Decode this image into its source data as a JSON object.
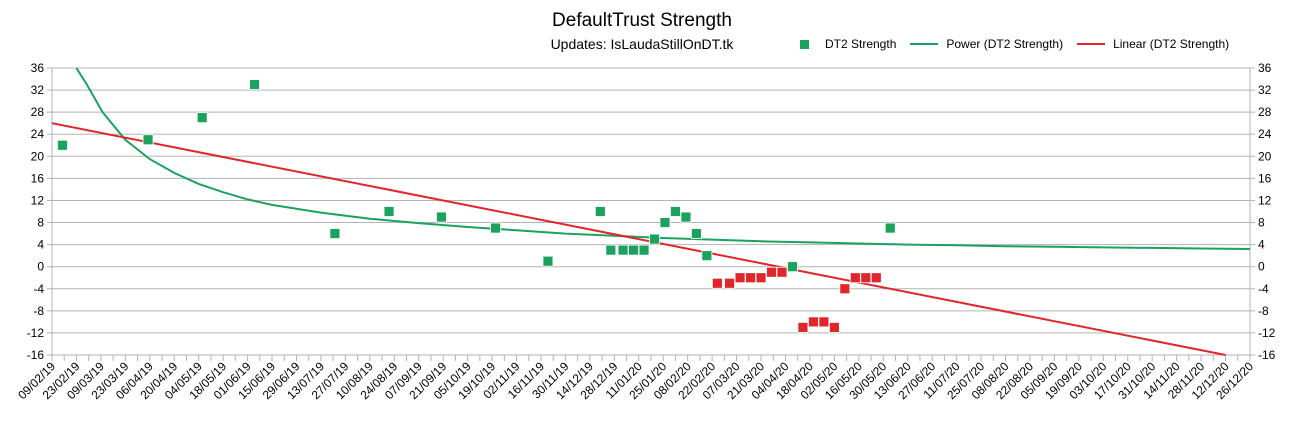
{
  "chart_data": {
    "type": "scatter",
    "title": "DefaultTrust Strength",
    "subtitle": "Updates: IsLaudaStillOnDT.tk",
    "legend_position": "top-right",
    "grid": true,
    "xlim": [
      "2019-02-09",
      "2020-12-26"
    ],
    "ylim": [
      -16,
      36
    ],
    "y_ticks": [
      -16,
      -12,
      -8,
      -4,
      0,
      4,
      8,
      12,
      16,
      20,
      24,
      28,
      32,
      36
    ],
    "x_tick_labels": [
      "09/02/19",
      "23/02/19",
      "09/03/19",
      "23/03/19",
      "06/04/19",
      "20/04/19",
      "04/05/19",
      "18/05/19",
      "01/06/19",
      "15/06/19",
      "29/06/19",
      "13/07/19",
      "27/07/19",
      "10/08/19",
      "24/08/19",
      "07/09/19",
      "21/09/19",
      "05/10/19",
      "19/10/19",
      "02/11/19",
      "16/11/19",
      "30/11/19",
      "14/12/19",
      "28/12/19",
      "11/01/20",
      "25/01/20",
      "08/02/20",
      "22/02/20",
      "07/03/20",
      "21/03/20",
      "04/04/20",
      "18/04/20",
      "02/05/20",
      "16/05/20",
      "30/05/20",
      "13/06/20",
      "27/06/20",
      "11/07/20",
      "25/07/20",
      "08/08/20",
      "22/08/20",
      "05/09/20",
      "19/09/20",
      "03/10/20",
      "17/10/20",
      "31/10/20",
      "14/11/20",
      "28/11/20",
      "12/12/20",
      "26/12/20"
    ],
    "series": [
      {
        "name": "DT2 Strength",
        "kind": "points",
        "color_positive": "#1ba25e",
        "color_negative": "#e0262b",
        "points": [
          {
            "x": "2019-02-15",
            "y": 22
          },
          {
            "x": "2019-04-05",
            "y": 23
          },
          {
            "x": "2019-05-06",
            "y": 27
          },
          {
            "x": "2019-06-05",
            "y": 33
          },
          {
            "x": "2019-07-21",
            "y": 6
          },
          {
            "x": "2019-08-21",
            "y": 10
          },
          {
            "x": "2019-09-20",
            "y": 9
          },
          {
            "x": "2019-10-21",
            "y": 7
          },
          {
            "x": "2019-11-20",
            "y": 1
          },
          {
            "x": "2019-12-20",
            "y": 10
          },
          {
            "x": "2019-12-26",
            "y": 3
          },
          {
            "x": "2020-01-02",
            "y": 3
          },
          {
            "x": "2020-01-08",
            "y": 3
          },
          {
            "x": "2020-01-14",
            "y": 3
          },
          {
            "x": "2020-01-20",
            "y": 5
          },
          {
            "x": "2020-01-26",
            "y": 8
          },
          {
            "x": "2020-02-01",
            "y": 10
          },
          {
            "x": "2020-02-07",
            "y": 9
          },
          {
            "x": "2020-02-13",
            "y": 6
          },
          {
            "x": "2020-02-19",
            "y": 2
          },
          {
            "x": "2020-02-25",
            "y": -3
          },
          {
            "x": "2020-03-03",
            "y": -3
          },
          {
            "x": "2020-03-09",
            "y": -2
          },
          {
            "x": "2020-03-15",
            "y": -2
          },
          {
            "x": "2020-03-21",
            "y": -2
          },
          {
            "x": "2020-03-27",
            "y": -1
          },
          {
            "x": "2020-04-02",
            "y": -1
          },
          {
            "x": "2020-04-08",
            "y": 0
          },
          {
            "x": "2020-04-14",
            "y": -11
          },
          {
            "x": "2020-04-20",
            "y": -10
          },
          {
            "x": "2020-04-26",
            "y": -10
          },
          {
            "x": "2020-05-02",
            "y": -11
          },
          {
            "x": "2020-05-08",
            "y": -4
          },
          {
            "x": "2020-05-14",
            "y": -2
          },
          {
            "x": "2020-05-20",
            "y": -2
          },
          {
            "x": "2020-05-26",
            "y": -2
          },
          {
            "x": "2020-06-03",
            "y": 7
          }
        ]
      },
      {
        "name": "Power (DT2 Strength)",
        "kind": "trendline",
        "color": "#1ba25e",
        "points": [
          {
            "x": "2019-02-23",
            "y": 36
          },
          {
            "x": "2019-03-01",
            "y": 33
          },
          {
            "x": "2019-03-10",
            "y": 28
          },
          {
            "x": "2019-03-23",
            "y": 23
          },
          {
            "x": "2019-04-06",
            "y": 19.5
          },
          {
            "x": "2019-04-20",
            "y": 17
          },
          {
            "x": "2019-05-04",
            "y": 15
          },
          {
            "x": "2019-05-18",
            "y": 13.5
          },
          {
            "x": "2019-06-01",
            "y": 12.2
          },
          {
            "x": "2019-06-15",
            "y": 11.2
          },
          {
            "x": "2019-07-13",
            "y": 9.8
          },
          {
            "x": "2019-08-10",
            "y": 8.7
          },
          {
            "x": "2019-09-07",
            "y": 7.9
          },
          {
            "x": "2019-10-05",
            "y": 7.2
          },
          {
            "x": "2019-11-02",
            "y": 6.6
          },
          {
            "x": "2019-11-30",
            "y": 6.0
          },
          {
            "x": "2019-12-28",
            "y": 5.6
          },
          {
            "x": "2020-01-25",
            "y": 5.2
          },
          {
            "x": "2020-02-22",
            "y": 4.9
          },
          {
            "x": "2020-03-21",
            "y": 4.6
          },
          {
            "x": "2020-04-18",
            "y": 4.4
          },
          {
            "x": "2020-05-16",
            "y": 4.2
          },
          {
            "x": "2020-06-13",
            "y": 4.0
          },
          {
            "x": "2020-07-11",
            "y": 3.9
          },
          {
            "x": "2020-08-08",
            "y": 3.7
          },
          {
            "x": "2020-09-05",
            "y": 3.6
          },
          {
            "x": "2020-10-03",
            "y": 3.5
          },
          {
            "x": "2020-10-31",
            "y": 3.4
          },
          {
            "x": "2020-11-28",
            "y": 3.3
          },
          {
            "x": "2020-12-26",
            "y": 3.2
          }
        ]
      },
      {
        "name": "Linear (DT2 Strength)",
        "kind": "trendline",
        "color": "#e0262b",
        "points": [
          {
            "x": "2019-02-09",
            "y": 26
          },
          {
            "x": "2020-12-12",
            "y": -16
          }
        ]
      }
    ]
  }
}
